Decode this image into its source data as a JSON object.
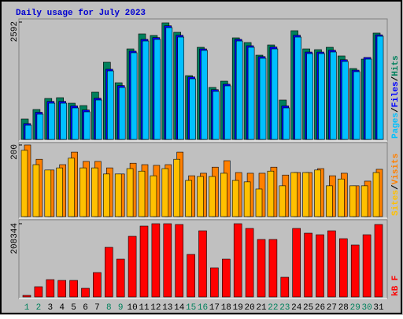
{
  "chart_data": [
    {
      "type": "bar",
      "title": "Daily usage for July 2023",
      "series": [
        {
          "name": "Hits",
          "color": "#00805c",
          "values": [
            452,
            661,
            905,
            922,
            800,
            748,
            1044,
            1705,
            1252,
            2000,
            2331,
            2296,
            2575,
            2366,
            1409,
            2035,
            1148,
            1287,
            2244,
            2140,
            1861,
            2087,
            870,
            2401,
            2000,
            1983,
            2035,
            1844,
            1566,
            1774,
            2349
          ]
        },
        {
          "name": "Files",
          "color": "#0000ff",
          "values": [
            350,
            600,
            840,
            840,
            740,
            650,
            910,
            1550,
            1190,
            1950,
            2210,
            2250,
            2510,
            2300,
            1380,
            2000,
            1100,
            1220,
            2210,
            2070,
            1830,
            2040,
            740,
            2300,
            1930,
            1930,
            1970,
            1760,
            1530,
            1810,
            2310
          ]
        },
        {
          "name": "Pages",
          "color": "#00c0ff",
          "values": [
            313,
            557,
            800,
            800,
            696,
            609,
            870,
            1513,
            1148,
            1914,
            2174,
            2209,
            2470,
            2261,
            1339,
            1966,
            1061,
            1183,
            2174,
            2035,
            1792,
            2000,
            696,
            2261,
            1896,
            1896,
            1931,
            1722,
            1496,
            1774,
            2279
          ]
        }
      ],
      "ylim": [
        0,
        2592
      ],
      "yticks": [
        2592
      ]
    },
    {
      "type": "bar",
      "series": [
        {
          "name": "Visits",
          "color": "#ff8000",
          "values": [
            200,
            160,
            130,
            145,
            180,
            154,
            154,
            136,
            119,
            149,
            145,
            143,
            145,
            180,
            114,
            121,
            138,
            156,
            123,
            121,
            121,
            138,
            116,
            123,
            123,
            134,
            114,
            121,
            86,
            99,
            132
          ]
        },
        {
          "name": "Sites",
          "color": "#ffc000",
          "values": [
            185,
            145,
            130,
            136,
            163,
            136,
            136,
            119,
            119,
            134,
            127,
            114,
            134,
            160,
            101,
            112,
            112,
            121,
            101,
            97,
            77,
            127,
            86,
            123,
            123,
            130,
            86,
            105,
            86,
            86,
            123
          ]
        }
      ],
      "ylim": [
        0,
        200
      ],
      "yticks": [
        200
      ]
    },
    {
      "type": "bar",
      "categories": [
        "1",
        "2",
        "3",
        "4",
        "5",
        "6",
        "7",
        "8",
        "9",
        "10",
        "11",
        "12",
        "13",
        "14",
        "15",
        "16",
        "17",
        "18",
        "19",
        "20",
        "21",
        "22",
        "23",
        "24",
        "25",
        "26",
        "27",
        "28",
        "29",
        "30",
        "31"
      ],
      "category_colors": [
        "#00805c",
        "#00805c",
        "#000000",
        "#000000",
        "#000000",
        "#000000",
        "#000000",
        "#00805c",
        "#00805c",
        "#000000",
        "#000000",
        "#000000",
        "#000000",
        "#000000",
        "#00805c",
        "#00805c",
        "#000000",
        "#000000",
        "#000000",
        "#000000",
        "#000000",
        "#00805c",
        "#00805c",
        "#000000",
        "#000000",
        "#000000",
        "#000000",
        "#000000",
        "#00805c",
        "#00805c",
        "#000000"
      ],
      "series": [
        {
          "name": "kB F",
          "color": "#ff0000",
          "values": [
            4480,
            29120,
            49280,
            47040,
            47040,
            24640,
            69440,
            141120,
            107520,
            172480,
            201600,
            208344,
            208344,
            206100,
            120960,
            188160,
            82880,
            107520,
            208344,
            194880,
            163520,
            163520,
            56000,
            194880,
            181440,
            176960,
            188160,
            165760,
            147840,
            176960,
            206100
          ]
        }
      ],
      "ylim": [
        0,
        208344
      ],
      "yticks": [
        208344
      ]
    }
  ],
  "legend_separator": "/"
}
